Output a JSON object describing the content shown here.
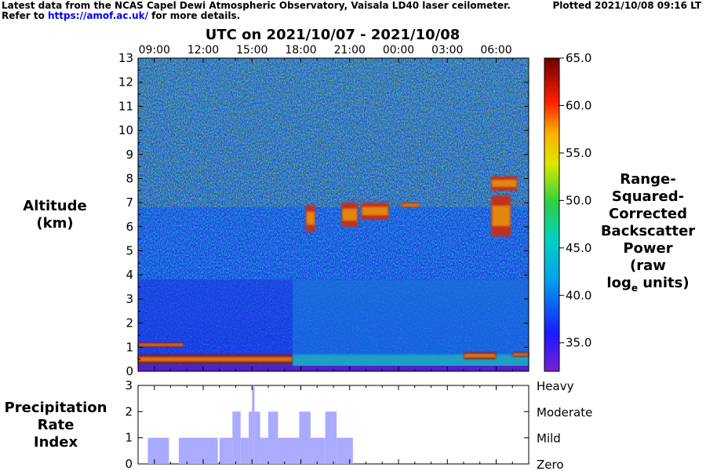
{
  "header": {
    "line1": "Latest data from the NCAS Capel Dewi Atmospheric Observatory, Vaisala LD40 laser ceilometer.",
    "line2_prefix": "Refer to",
    "line2_link": "https://amof.ac.uk/",
    "line2_suffix": "for more details.",
    "plotted": "Plotted 2021/10/08 09:16 LT"
  },
  "chart_data": [
    {
      "type": "heatmap",
      "title": "UTC on 2021/10/07 - 2021/10/08",
      "ylabel_lines": [
        "Altitude",
        "(km)"
      ],
      "x_tick_labels": [
        "09:00",
        "12:00",
        "15:00",
        "18:00",
        "21:00",
        "00:00",
        "03:00",
        "06:00"
      ],
      "x_tick_hours": [
        9,
        12,
        15,
        18,
        21,
        24,
        27,
        30
      ],
      "xlim_hours": [
        8.0,
        32.0
      ],
      "ylim": [
        0,
        13
      ],
      "y_ticks": [
        0,
        1,
        2,
        3,
        4,
        5,
        6,
        7,
        8,
        9,
        10,
        11,
        12,
        13
      ],
      "colorbar": {
        "range": [
          32.0,
          65.0
        ],
        "ticks": [
          "35.0",
          "40.0",
          "45.0",
          "50.0",
          "55.0",
          "60.0",
          "65.0"
        ],
        "tick_values": [
          35,
          40,
          45,
          50,
          55,
          60,
          65
        ],
        "label_lines": [
          "Range-",
          "Squared-",
          "Corrected",
          "Backscatter",
          "Power",
          "(raw",
          "log",
          "units)"
        ],
        "label_subscript": "e"
      },
      "features": [
        {
          "kind": "boundary_layer",
          "x_start": 8.0,
          "x_end": 17.5,
          "altitude_km": [
            0.3,
            0.7
          ]
        },
        {
          "kind": "aerosol_layer",
          "x_start": 17.5,
          "x_end": 32.0,
          "altitude_km": [
            0.0,
            3.8
          ]
        },
        {
          "kind": "cloud",
          "x_start": 18.3,
          "x_end": 18.9,
          "altitude_km": [
            5.8,
            6.9
          ]
        },
        {
          "kind": "cloud",
          "x_start": 20.5,
          "x_end": 21.5,
          "altitude_km": [
            6.0,
            7.0
          ]
        },
        {
          "kind": "cloud",
          "x_start": 21.7,
          "x_end": 23.4,
          "altitude_km": [
            6.3,
            7.0
          ]
        },
        {
          "kind": "cloud",
          "x_start": 24.2,
          "x_end": 25.3,
          "altitude_km": [
            6.8,
            7.0
          ]
        },
        {
          "kind": "cloud",
          "x_start": 29.7,
          "x_end": 31.3,
          "altitude_km": [
            7.5,
            8.1
          ]
        },
        {
          "kind": "cloud",
          "x_start": 29.7,
          "x_end": 30.9,
          "altitude_km": [
            5.6,
            7.3
          ]
        },
        {
          "kind": "low_cloud",
          "x_start": 8.0,
          "x_end": 10.8,
          "altitude_km": [
            1.0,
            1.2
          ]
        },
        {
          "kind": "low_cloud",
          "x_start": 28.0,
          "x_end": 30.0,
          "altitude_km": [
            0.5,
            0.8
          ]
        },
        {
          "kind": "low_cloud",
          "x_start": 31.0,
          "x_end": 32.0,
          "altitude_km": [
            0.6,
            0.8
          ]
        }
      ]
    },
    {
      "type": "bar",
      "ylabel_lines": [
        "Precipitation",
        "Rate",
        "Index"
      ],
      "ylim": [
        0,
        3
      ],
      "y_ticks": [
        0,
        1,
        2,
        3
      ],
      "category_labels": [
        "Zero",
        "Mild",
        "Moderate",
        "Heavy"
      ],
      "xlim_hours": [
        8.0,
        32.0
      ],
      "bar_color": "#aaaaff",
      "values_by_period": [
        {
          "x_start": 8.6,
          "x_end": 9.9,
          "value": 1
        },
        {
          "x_start": 10.5,
          "x_end": 12.9,
          "value": 1
        },
        {
          "x_start": 13.0,
          "x_end": 13.8,
          "value": 1
        },
        {
          "x_start": 13.8,
          "x_end": 14.3,
          "value": 2
        },
        {
          "x_start": 14.3,
          "x_end": 14.8,
          "value": 1
        },
        {
          "x_start": 14.8,
          "x_end": 15.0,
          "value": 2
        },
        {
          "x_start": 15.0,
          "x_end": 15.15,
          "value": 3
        },
        {
          "x_start": 15.15,
          "x_end": 15.5,
          "value": 2
        },
        {
          "x_start": 15.5,
          "x_end": 16.0,
          "value": 1
        },
        {
          "x_start": 16.0,
          "x_end": 16.6,
          "value": 2
        },
        {
          "x_start": 16.6,
          "x_end": 17.9,
          "value": 1
        },
        {
          "x_start": 17.9,
          "x_end": 18.6,
          "value": 2
        },
        {
          "x_start": 18.6,
          "x_end": 19.5,
          "value": 1
        },
        {
          "x_start": 19.5,
          "x_end": 20.2,
          "value": 2
        },
        {
          "x_start": 20.2,
          "x_end": 21.2,
          "value": 1
        }
      ]
    }
  ]
}
